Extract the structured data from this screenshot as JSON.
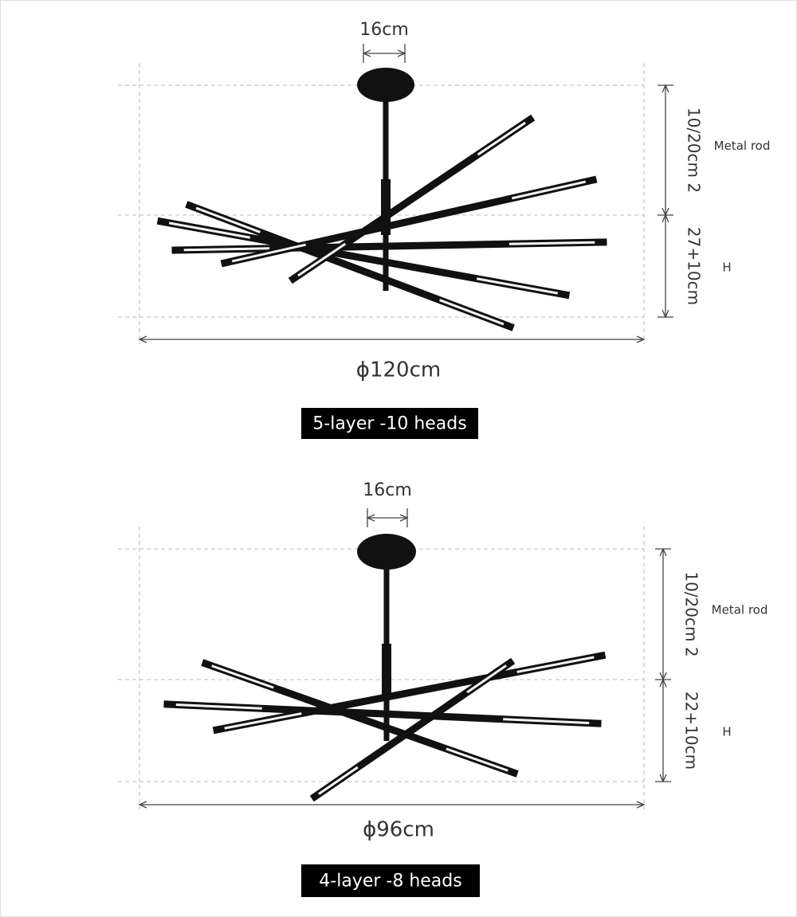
{
  "sections": [
    {
      "canopy_width": "16cm",
      "rod_length": "10/20cm 2",
      "rod_label": "Metal rod",
      "height": "27+10cm",
      "height_label": "H",
      "diameter": "ϕ120cm",
      "model": "5-layer -10 heads"
    },
    {
      "canopy_width": "16cm",
      "rod_length": "10/20cm 2",
      "rod_label": "Metal rod",
      "height": "22+10cm",
      "height_label": "H",
      "diameter": "ϕ96cm",
      "model": "4-layer -8 heads"
    }
  ]
}
